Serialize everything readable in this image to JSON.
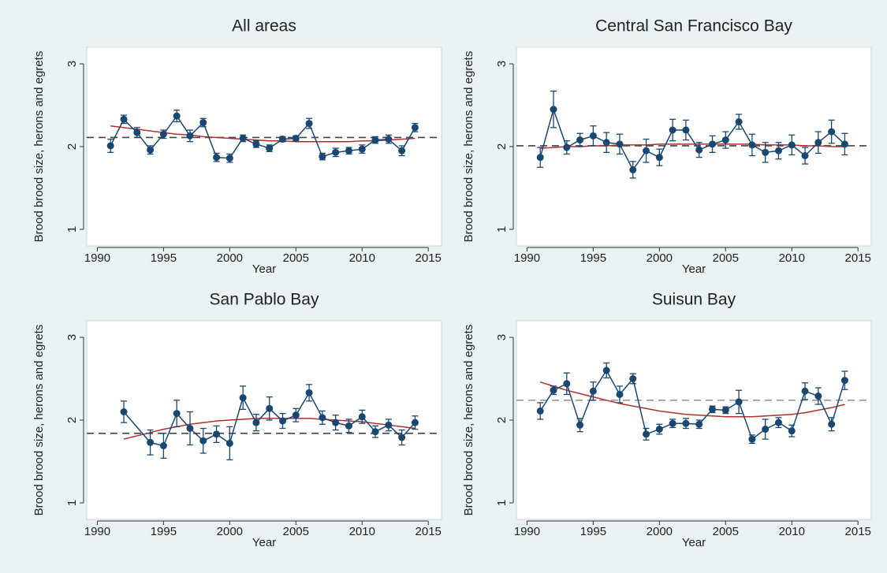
{
  "chart_data": [
    {
      "type": "line",
      "title": "All areas",
      "xlabel": "Year",
      "ylabel": "Brood brood size, herons and egrets",
      "x": [
        1991,
        1992,
        1993,
        1994,
        1995,
        1996,
        1997,
        1998,
        1999,
        2000,
        2001,
        2002,
        2003,
        2004,
        2005,
        2006,
        2007,
        2008,
        2009,
        2010,
        2011,
        2012,
        2013,
        2014
      ],
      "values": [
        2.01,
        2.33,
        2.17,
        1.96,
        2.15,
        2.37,
        2.13,
        2.29,
        1.87,
        1.86,
        2.1,
        2.03,
        1.98,
        2.09,
        2.1,
        2.28,
        1.88,
        1.93,
        1.95,
        1.97,
        2.08,
        2.09,
        1.95,
        2.23
      ],
      "errors": [
        0.08,
        0.05,
        0.06,
        0.05,
        0.05,
        0.07,
        0.07,
        0.05,
        0.05,
        0.05,
        0.04,
        0.04,
        0.04,
        0.03,
        0.03,
        0.06,
        0.04,
        0.05,
        0.04,
        0.05,
        0.04,
        0.05,
        0.06,
        0.05
      ],
      "trend": [
        2.25,
        2.23,
        2.21,
        2.19,
        2.17,
        2.15,
        2.14,
        2.12,
        2.11,
        2.1,
        2.09,
        2.08,
        2.07,
        2.07,
        2.06,
        2.06,
        2.06,
        2.06,
        2.06,
        2.07,
        2.07,
        2.08,
        2.09,
        2.1
      ],
      "mean": 2.11,
      "xlim": [
        1989.2,
        2016
      ],
      "ylim": [
        0.8,
        3.2
      ],
      "xticks": [
        1990,
        1995,
        2000,
        2005,
        2010,
        2015
      ],
      "yticks": [
        1,
        2,
        3
      ],
      "color": "#1a476f",
      "trend_color": "#b03030",
      "mean_color": "#444444"
    },
    {
      "type": "line",
      "title": "Central San Francisco Bay",
      "xlabel": "Year",
      "ylabel": "Brood brood size, herons and egrets",
      "x": [
        1991,
        1992,
        1993,
        1994,
        1995,
        1996,
        1997,
        1998,
        1999,
        2000,
        2001,
        2002,
        2003,
        2004,
        2005,
        2006,
        2007,
        2008,
        2009,
        2010,
        2011,
        2012,
        2013,
        2014
      ],
      "values": [
        1.87,
        2.45,
        1.99,
        2.08,
        2.13,
        2.05,
        2.03,
        1.72,
        1.95,
        1.87,
        2.2,
        2.2,
        1.96,
        2.03,
        2.08,
        2.3,
        2.02,
        1.93,
        1.95,
        2.02,
        1.89,
        2.05,
        2.18,
        2.03
      ],
      "errors": [
        0.12,
        0.22,
        0.08,
        0.08,
        0.12,
        0.12,
        0.12,
        0.1,
        0.14,
        0.1,
        0.13,
        0.12,
        0.09,
        0.1,
        0.1,
        0.09,
        0.13,
        0.12,
        0.1,
        0.12,
        0.1,
        0.13,
        0.14,
        0.13
      ],
      "trend": [
        1.98,
        1.99,
        2.0,
        2.0,
        2.01,
        2.01,
        2.02,
        2.02,
        2.02,
        2.03,
        2.03,
        2.03,
        2.03,
        2.03,
        2.03,
        2.03,
        2.03,
        2.02,
        2.02,
        2.02,
        2.01,
        2.01,
        2.0,
        2.0
      ],
      "mean": 2.01,
      "xlim": [
        1989.2,
        2016
      ],
      "ylim": [
        0.8,
        3.2
      ],
      "xticks": [
        1990,
        1995,
        2000,
        2005,
        2010,
        2015
      ],
      "yticks": [
        1,
        2,
        3
      ],
      "color": "#1a476f",
      "trend_color": "#b03030",
      "mean_color": "#444444"
    },
    {
      "type": "line",
      "title": "San Pablo Bay",
      "xlabel": "Year",
      "ylabel": "Brood brood size, herons and egrets",
      "x": [
        1992,
        1994,
        1995,
        1996,
        1997,
        1998,
        1999,
        2000,
        2001,
        2002,
        2003,
        2004,
        2005,
        2006,
        2007,
        2008,
        2009,
        2010,
        2011,
        2012,
        2013,
        2014
      ],
      "values": [
        2.1,
        1.73,
        1.69,
        2.08,
        1.9,
        1.75,
        1.83,
        1.72,
        2.27,
        1.97,
        2.14,
        1.99,
        2.06,
        2.33,
        2.03,
        1.97,
        1.93,
        2.04,
        1.86,
        1.94,
        1.79,
        1.97
      ],
      "errors": [
        0.13,
        0.15,
        0.15,
        0.16,
        0.2,
        0.15,
        0.1,
        0.2,
        0.14,
        0.1,
        0.14,
        0.09,
        0.08,
        0.1,
        0.08,
        0.09,
        0.08,
        0.08,
        0.07,
        0.07,
        0.09,
        0.08
      ],
      "trend": [
        1.77,
        1.85,
        1.89,
        1.92,
        1.95,
        1.97,
        1.99,
        2.0,
        2.01,
        2.02,
        2.02,
        2.02,
        2.02,
        2.02,
        2.01,
        2.0,
        1.99,
        1.98,
        1.96,
        1.94,
        1.92,
        1.9
      ],
      "mean": 1.84,
      "xlim": [
        1989.2,
        2016
      ],
      "ylim": [
        0.8,
        3.2
      ],
      "xticks": [
        1990,
        1995,
        2000,
        2005,
        2010,
        2015
      ],
      "yticks": [
        1,
        2,
        3
      ],
      "color": "#1a476f",
      "trend_color": "#b03030",
      "mean_color": "#444444"
    },
    {
      "type": "line",
      "title": "Suisun Bay",
      "xlabel": "Year",
      "ylabel": "Brood brood size, herons and egrets",
      "x": [
        1991,
        1992,
        1993,
        1994,
        1995,
        1996,
        1997,
        1998,
        1999,
        2000,
        2001,
        2002,
        2003,
        2004,
        2005,
        2006,
        2007,
        2008,
        2009,
        2010,
        2011,
        2012,
        2013,
        2014
      ],
      "values": [
        2.11,
        2.36,
        2.44,
        1.94,
        2.35,
        2.6,
        2.31,
        2.5,
        1.83,
        1.89,
        1.96,
        1.96,
        1.95,
        2.13,
        2.12,
        2.22,
        1.77,
        1.89,
        1.97,
        1.87,
        2.35,
        2.29,
        1.95,
        2.48
      ],
      "errors": [
        0.1,
        0.05,
        0.13,
        0.08,
        0.11,
        0.09,
        0.1,
        0.06,
        0.07,
        0.06,
        0.05,
        0.06,
        0.05,
        0.04,
        0.04,
        0.14,
        0.05,
        0.12,
        0.06,
        0.07,
        0.1,
        0.1,
        0.08,
        0.11
      ],
      "trend": [
        2.46,
        2.41,
        2.36,
        2.32,
        2.28,
        2.24,
        2.2,
        2.17,
        2.14,
        2.11,
        2.09,
        2.07,
        2.06,
        2.05,
        2.04,
        2.04,
        2.04,
        2.05,
        2.06,
        2.07,
        2.09,
        2.12,
        2.15,
        2.19
      ],
      "mean": 2.24,
      "xlim": [
        1989.2,
        2016
      ],
      "ylim": [
        0.8,
        3.2
      ],
      "xticks": [
        1990,
        1995,
        2000,
        2005,
        2010,
        2015
      ],
      "yticks": [
        1,
        2,
        3
      ],
      "color": "#1a476f",
      "trend_color": "#b03030",
      "mean_color": "#999999"
    }
  ]
}
